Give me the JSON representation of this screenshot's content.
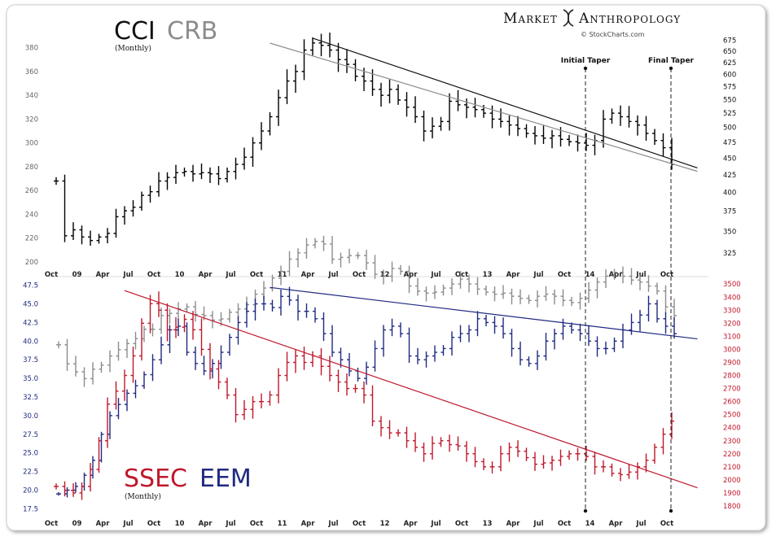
{
  "brand": {
    "name_part1": "Market",
    "name_part2": "Anthropology",
    "source": "© StockCharts.com"
  },
  "chart_data": [
    {
      "type": "ohlc",
      "title_primary": "CCI",
      "title_secondary": "CRB",
      "subtitle": "(Monthly)",
      "x_ticks": [
        "Oct",
        "09",
        "Apr",
        "Jul",
        "Oct",
        "10",
        "Apr",
        "Jul",
        "Oct",
        "11",
        "Apr",
        "Jul",
        "Oct",
        "12",
        "Apr",
        "Jul",
        "Oct",
        "13",
        "Apr",
        "Jul",
        "Oct",
        "14",
        "Apr",
        "Jul",
        "Oct"
      ],
      "left_axis": {
        "ticks": [
          200,
          220,
          240,
          260,
          280,
          300,
          320,
          340,
          360,
          380
        ],
        "range": [
          200,
          390
        ]
      },
      "right_axis": {
        "ticks": [
          325,
          350,
          375,
          400,
          425,
          450,
          475,
          500,
          525,
          550,
          575,
          600,
          625,
          650,
          675
        ],
        "range": [
          315,
          685
        ]
      },
      "annotations": [
        {
          "label": "Initial Taper",
          "month": 62
        },
        {
          "label": "Final Taper",
          "month": 72
        }
      ],
      "colors": {
        "primary": "#000000",
        "secondary": "#8c8c8c"
      },
      "series": [
        {
          "name": "CCI",
          "values": [
            268,
            222,
            227,
            221,
            218,
            221,
            224,
            238,
            243,
            246,
            256,
            259,
            268,
            271,
            275,
            276,
            274,
            275,
            274,
            270,
            276,
            282,
            288,
            300,
            310,
            322,
            338,
            352,
            360,
            378,
            384,
            382,
            378,
            370,
            366,
            356,
            352,
            345,
            340,
            345,
            336,
            330,
            322,
            310,
            314,
            318,
            335,
            332,
            330,
            328,
            325,
            320,
            318,
            315,
            312,
            308,
            306,
            304,
            306,
            303,
            301,
            300,
            298,
            302,
            320,
            325,
            322,
            318,
            315,
            308,
            302,
            296,
            282
          ]
        },
        {
          "name": "CRB",
          "values": [
            237,
            222,
            216,
            211,
            218,
            221,
            228,
            233,
            238,
            242,
            250,
            250,
            262,
            264,
            268,
            270,
            263,
            262,
            258,
            259,
            265,
            268,
            272,
            282,
            288,
            298,
            305,
            318,
            325,
            334,
            338,
            335,
            318,
            320,
            322,
            322,
            314,
            302,
            300,
            308,
            305,
            290,
            285,
            283,
            284,
            288,
            292,
            297,
            292,
            287,
            284,
            282,
            283,
            280,
            278,
            276,
            280,
            282,
            280,
            276,
            274,
            278,
            286,
            294,
            300,
            304,
            300,
            296,
            294,
            290,
            285,
            270,
            262
          ]
        }
      ]
    },
    {
      "type": "ohlc",
      "title_primary": "SSEC",
      "title_secondary": "EEM",
      "subtitle": "(Monthly)",
      "x_ticks": [
        "Oct",
        "09",
        "Apr",
        "Jul",
        "Oct",
        "10",
        "Apr",
        "Jul",
        "Oct",
        "11",
        "Apr",
        "Jul",
        "Oct",
        "12",
        "Apr",
        "Jul",
        "Oct",
        "13",
        "Apr",
        "Jul",
        "Oct",
        "14",
        "Apr",
        "Jul",
        "Oct"
      ],
      "left_axis": {
        "ticks": [
          17.5,
          20.0,
          22.5,
          25.0,
          27.5,
          30.0,
          32.5,
          35.0,
          37.5,
          40.0,
          42.5,
          45.0,
          47.5
        ],
        "range": [
          17,
          48
        ]
      },
      "right_axis": {
        "ticks": [
          1800,
          1900,
          2000,
          2100,
          2200,
          2300,
          2400,
          2500,
          2600,
          2700,
          2800,
          2900,
          3000,
          3100,
          3200,
          3300,
          3400,
          3500
        ],
        "range": [
          1750,
          3520
        ]
      },
      "colors": {
        "primary": "#c0172b",
        "secondary": "#1f2a80"
      },
      "series": [
        {
          "name": "SSEC",
          "values": [
            1950,
            1920,
            1900,
            1950,
            2080,
            2300,
            2580,
            2680,
            2800,
            2950,
            3200,
            3350,
            3300,
            3150,
            3170,
            3230,
            3150,
            3000,
            2850,
            2750,
            2650,
            2500,
            2540,
            2600,
            2600,
            2650,
            2800,
            2900,
            2950,
            2900,
            2950,
            2870,
            2800,
            2750,
            2700,
            2700,
            2650,
            2450,
            2400,
            2360,
            2360,
            2300,
            2250,
            2200,
            2280,
            2300,
            2270,
            2260,
            2200,
            2140,
            2100,
            2100,
            2200,
            2250,
            2220,
            2170,
            2120,
            2130,
            2150,
            2180,
            2200,
            2200,
            2180,
            2100,
            2100,
            2050,
            2040,
            2060,
            2100,
            2150,
            2250,
            2350,
            2450
          ]
        },
        {
          "name": "EEM",
          "values": [
            19.5,
            20.0,
            20.5,
            22.0,
            24.0,
            27.5,
            30.0,
            31.5,
            33.0,
            34.0,
            35.5,
            37.5,
            39.5,
            41.5,
            42.0,
            38.5,
            37.0,
            36.0,
            37.0,
            38.5,
            40.5,
            42.5,
            44.0,
            45.0,
            45.0,
            44.5,
            46.0,
            45.5,
            44.0,
            44.0,
            43.0,
            41.0,
            38.5,
            37.5,
            36.0,
            35.0,
            36.5,
            39.0,
            41.5,
            42.0,
            41.0,
            38.0,
            37.5,
            38.0,
            38.5,
            39.0,
            40.5,
            41.0,
            41.5,
            43.0,
            42.5,
            42.0,
            41.0,
            39.0,
            37.5,
            37.0,
            38.0,
            40.0,
            41.0,
            42.0,
            41.5,
            41.0,
            40.0,
            39.0,
            39.0,
            40.0,
            41.5,
            42.5,
            43.5,
            45.0,
            43.0,
            42.0,
            41.0
          ]
        }
      ]
    }
  ]
}
